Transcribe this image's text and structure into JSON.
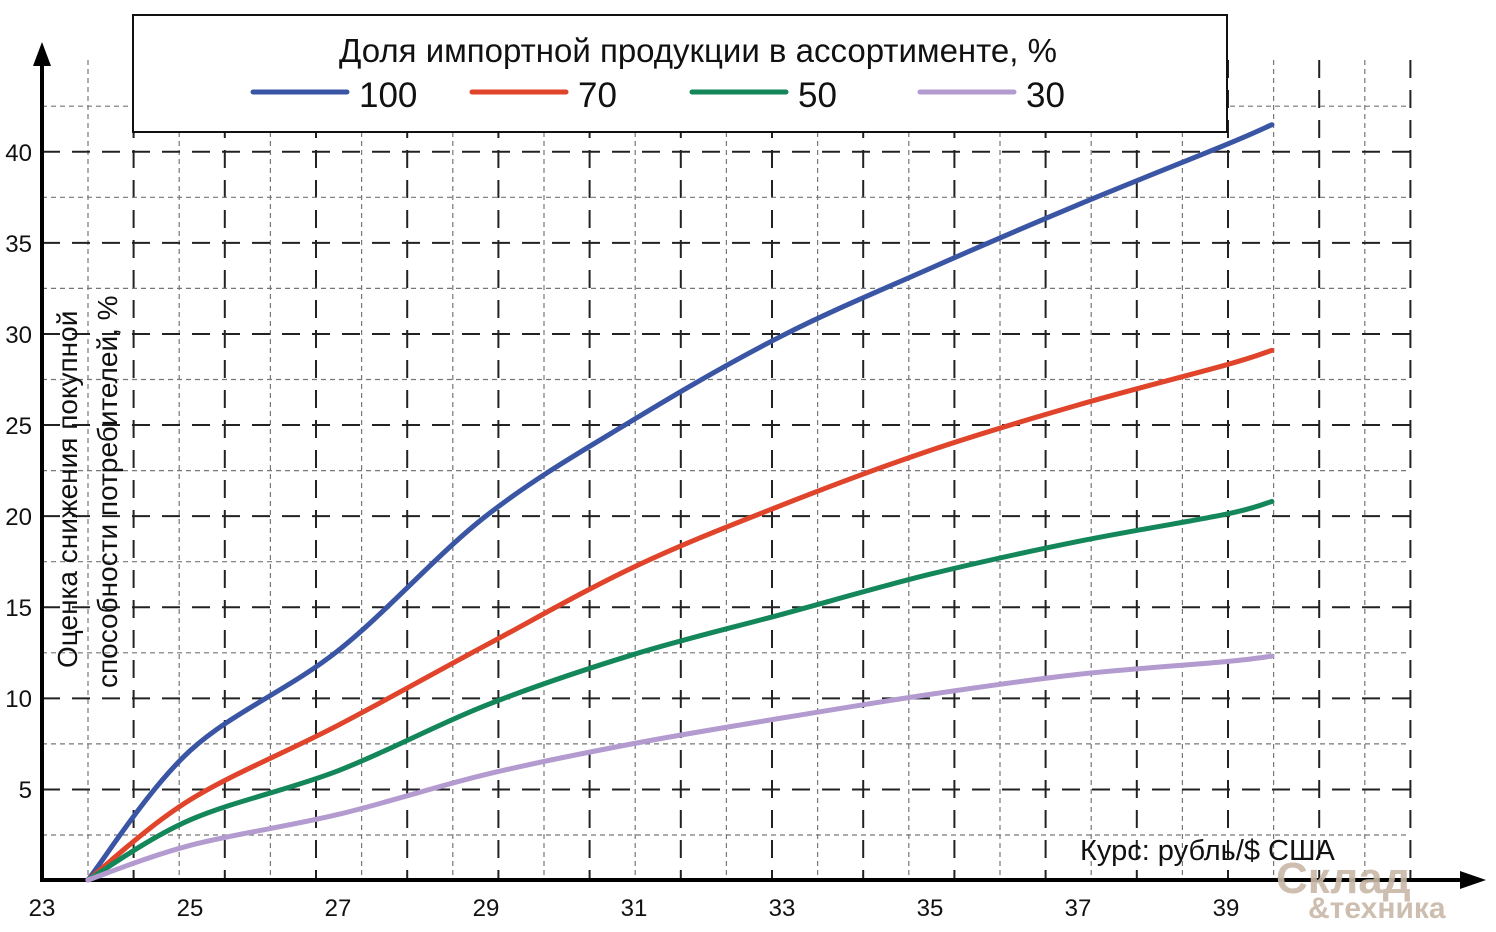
{
  "chart_data": {
    "type": "line",
    "title": "",
    "legend_title": "Доля импортной продукции в ассортименте, %",
    "legend_placement": "top",
    "xlabel": "Курс:  рубль/$ США",
    "ylabel_line1": "Оценка снижения покупной",
    "ylabel_line2": "способности потребителей, %",
    "xlim": [
      23,
      40.5
    ],
    "ylim": [
      0,
      42.5
    ],
    "x_ticks": [
      "23",
      "25",
      "27",
      "29",
      "31",
      "33",
      "35",
      "37",
      "39"
    ],
    "y_ticks": [
      "5",
      "10",
      "15",
      "20",
      "25",
      "30",
      "35",
      "40"
    ],
    "grid": true,
    "x": [
      23.62,
      25,
      27,
      29,
      31,
      33,
      35,
      37,
      39,
      39.62
    ],
    "series": [
      {
        "name": "100",
        "color": "#3a55a4",
        "values": [
          0,
          7.1,
          12.6,
          20.0,
          25.3,
          29.9,
          33.6,
          37.1,
          40.4,
          41.5
        ]
      },
      {
        "name": "70",
        "color": "#e0442b",
        "values": [
          0,
          4.4,
          8.5,
          12.9,
          17.2,
          20.6,
          23.6,
          26.1,
          28.3,
          29.1
        ]
      },
      {
        "name": "50",
        "color": "#13865a",
        "values": [
          0,
          3.3,
          6.0,
          9.6,
          12.4,
          14.6,
          16.8,
          18.6,
          20.1,
          20.8
        ]
      },
      {
        "name": "30",
        "color": "#b39bd0",
        "values": [
          0,
          1.9,
          3.6,
          5.8,
          7.5,
          8.9,
          10.2,
          11.3,
          12.0,
          12.3
        ]
      }
    ]
  },
  "watermark": {
    "line1": "Склад",
    "line2": "&техника",
    "color": "#c8b8a8"
  }
}
